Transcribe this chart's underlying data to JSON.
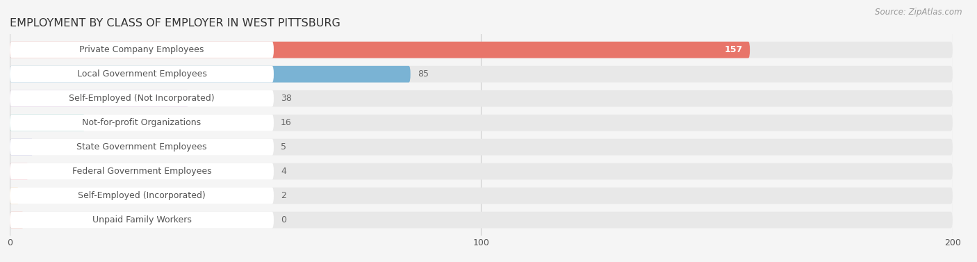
{
  "title": "EMPLOYMENT BY CLASS OF EMPLOYER IN WEST PITTSBURG",
  "source": "Source: ZipAtlas.com",
  "categories": [
    "Private Company Employees",
    "Local Government Employees",
    "Self-Employed (Not Incorporated)",
    "Not-for-profit Organizations",
    "State Government Employees",
    "Federal Government Employees",
    "Self-Employed (Incorporated)",
    "Unpaid Family Workers"
  ],
  "values": [
    157,
    85,
    38,
    16,
    5,
    4,
    2,
    0
  ],
  "bar_colors": [
    "#e8756a",
    "#7ab3d4",
    "#c4a0c8",
    "#6dbfb8",
    "#a8a8d8",
    "#f4a0b0",
    "#f5c88a",
    "#f0a898"
  ],
  "background_color": "#f5f5f5",
  "bar_bg_color": "#e8e8e8",
  "label_bg_color": "#ffffff",
  "xlim": [
    0,
    200
  ],
  "xticks": [
    0,
    100,
    200
  ],
  "title_fontsize": 11.5,
  "label_fontsize": 9,
  "value_fontsize": 9,
  "source_fontsize": 8.5,
  "bar_height": 0.68,
  "label_color": "#555555",
  "title_color": "#333333",
  "value_color_inside": "#ffffff",
  "value_color_outside": "#666666",
  "grid_color": "#d0d0d0",
  "source_color": "#999999"
}
